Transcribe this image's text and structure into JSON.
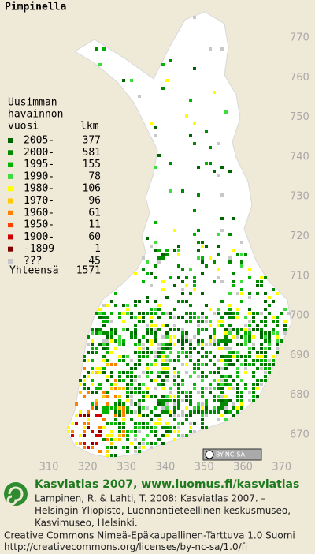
{
  "title": "Pimpinella",
  "legend": {
    "heading": [
      "Uusimman",
      "havainnon",
      "vuosi"
    ],
    "count_header": "lkm",
    "entries": [
      {
        "label": "2005-",
        "count": 377,
        "color": "#006400"
      },
      {
        "label": "2000-",
        "count": 581,
        "color": "#008a00"
      },
      {
        "label": "1995-",
        "count": 155,
        "color": "#00b400"
      },
      {
        "label": "1990-",
        "count": 78,
        "color": "#3cdc3c"
      },
      {
        "label": "1980-",
        "count": 106,
        "color": "#ffff00"
      },
      {
        "label": "1970-",
        "count": 96,
        "color": "#ffc800"
      },
      {
        "label": "1960-",
        "count": 61,
        "color": "#ff8000"
      },
      {
        "label": "1950-",
        "count": 11,
        "color": "#ff4000"
      },
      {
        "label": "1900-",
        "count": 60,
        "color": "#d00000"
      },
      {
        "label": "-1899",
        "count": 1,
        "color": "#800000"
      },
      {
        "label": "???",
        "count": 45,
        "color": "#c8c8c8"
      }
    ],
    "total_label": "Yhteensä",
    "total": 1571
  },
  "grid": {
    "y_labels": [
      770,
      760,
      750,
      740,
      730,
      720,
      710,
      700,
      690,
      680,
      670
    ],
    "x_labels": [
      310,
      320,
      330,
      340,
      350,
      360,
      370
    ]
  },
  "badge": "BY-NC-SA",
  "footer": {
    "heading": "Kasviatlas 2007, www.luomus.fi/kasviatlas",
    "citation": [
      "Lampinen, R. & Lahti, T. 2008: Kasviatlas 2007. –",
      "Helsingin Yliopisto, Luonnontieteellinen keskusmuseo,",
      "Kasvimuseo, Helsinki."
    ],
    "license": [
      "Creative Commons Nimeä-Epäkaupallinen-Tarttuva 1.0 Suomi",
      "http://creativecommons.org/licenses/by-nc-sa/1.0/fi"
    ]
  }
}
